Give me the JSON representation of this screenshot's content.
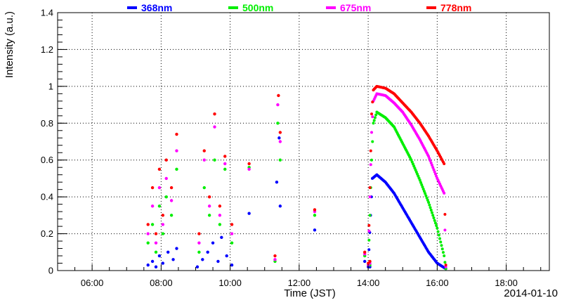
{
  "chart_data": {
    "type": "scatter",
    "title": "",
    "xlabel": "Time (JST)",
    "ylabel": "Intensity (a.u.)",
    "date_label": "2014-01-10",
    "x_unit": "hours",
    "xlim": [
      5.0,
      19.25
    ],
    "ylim": [
      0,
      1.4
    ],
    "x_ticks": [
      6,
      8,
      10,
      12,
      14,
      16,
      18
    ],
    "x_tick_labels": [
      "06:00",
      "08:00",
      "10:00",
      "12:00",
      "14:00",
      "16:00",
      "18:00"
    ],
    "y_ticks": [
      0,
      0.2,
      0.4,
      0.6,
      0.8,
      1,
      1.2,
      1.4
    ],
    "y_tick_labels": [
      "0",
      "0.2",
      "0.4",
      "0.6",
      "0.8",
      "1",
      "1.2",
      "1.4"
    ],
    "grid": true,
    "legend_position": "top",
    "series": [
      {
        "name": "368nm",
        "color": "#0000ff",
        "smooth": [
          [
            14.0,
            0.02
          ],
          [
            14.07,
            0.3
          ],
          [
            14.12,
            0.5
          ],
          [
            14.25,
            0.52
          ],
          [
            14.5,
            0.48
          ],
          [
            14.75,
            0.42
          ],
          [
            15.0,
            0.34
          ],
          [
            15.25,
            0.26
          ],
          [
            15.5,
            0.18
          ],
          [
            15.75,
            0.1
          ],
          [
            16.0,
            0.04
          ],
          [
            16.25,
            0.01
          ]
        ],
        "scatter": [
          [
            7.62,
            0.03
          ],
          [
            7.75,
            0.05
          ],
          [
            7.85,
            0.02
          ],
          [
            7.95,
            0.08
          ],
          [
            8.05,
            0.04
          ],
          [
            8.2,
            0.1
          ],
          [
            8.35,
            0.06
          ],
          [
            8.45,
            0.12
          ],
          [
            9.05,
            0.02
          ],
          [
            9.2,
            0.06
          ],
          [
            9.35,
            0.1
          ],
          [
            9.5,
            0.15
          ],
          [
            9.65,
            0.05
          ],
          [
            9.75,
            0.18
          ],
          [
            9.9,
            0.08
          ],
          [
            10.05,
            0.03
          ],
          [
            10.55,
            0.31
          ],
          [
            11.35,
            0.48
          ],
          [
            11.42,
            0.72
          ],
          [
            11.45,
            0.35
          ],
          [
            12.45,
            0.22
          ],
          [
            13.9,
            0.05
          ],
          [
            14.05,
            0.02
          ]
        ]
      },
      {
        "name": "500nm",
        "color": "#00ee00",
        "smooth": [
          [
            14.0,
            0.03
          ],
          [
            14.05,
            0.3
          ],
          [
            14.1,
            0.6
          ],
          [
            14.15,
            0.8
          ],
          [
            14.25,
            0.86
          ],
          [
            14.5,
            0.83
          ],
          [
            14.75,
            0.78
          ],
          [
            15.0,
            0.69
          ],
          [
            15.25,
            0.6
          ],
          [
            15.5,
            0.49
          ],
          [
            15.75,
            0.37
          ],
          [
            16.0,
            0.23
          ],
          [
            16.2,
            0.08
          ],
          [
            16.25,
            0.01
          ]
        ],
        "scatter": [
          [
            7.62,
            0.15
          ],
          [
            7.75,
            0.25
          ],
          [
            7.85,
            0.1
          ],
          [
            7.95,
            0.35
          ],
          [
            8.05,
            0.2
          ],
          [
            8.15,
            0.4
          ],
          [
            8.3,
            0.3
          ],
          [
            8.45,
            0.55
          ],
          [
            9.1,
            0.1
          ],
          [
            9.25,
            0.45
          ],
          [
            9.4,
            0.3
          ],
          [
            9.55,
            0.6
          ],
          [
            9.7,
            0.25
          ],
          [
            9.85,
            0.55
          ],
          [
            10.05,
            0.15
          ],
          [
            10.55,
            0.56
          ],
          [
            11.3,
            0.05
          ],
          [
            11.38,
            0.8
          ],
          [
            11.45,
            0.6
          ],
          [
            12.45,
            0.3
          ],
          [
            13.9,
            0.08
          ],
          [
            14.05,
            0.03
          ]
        ]
      },
      {
        "name": "675nm",
        "color": "#ff00ff",
        "smooth": [
          [
            14.0,
            0.03
          ],
          [
            14.05,
            0.4
          ],
          [
            14.1,
            0.75
          ],
          [
            14.15,
            0.92
          ],
          [
            14.25,
            0.96
          ],
          [
            14.5,
            0.95
          ],
          [
            14.75,
            0.91
          ],
          [
            15.0,
            0.86
          ],
          [
            15.25,
            0.79
          ],
          [
            15.5,
            0.71
          ],
          [
            15.75,
            0.62
          ],
          [
            16.0,
            0.5
          ],
          [
            16.2,
            0.42
          ],
          [
            16.25,
            0.02
          ]
        ],
        "scatter": [
          [
            7.62,
            0.2
          ],
          [
            7.75,
            0.35
          ],
          [
            7.85,
            0.15
          ],
          [
            7.95,
            0.45
          ],
          [
            8.05,
            0.25
          ],
          [
            8.15,
            0.5
          ],
          [
            8.3,
            0.38
          ],
          [
            8.45,
            0.65
          ],
          [
            9.1,
            0.15
          ],
          [
            9.25,
            0.6
          ],
          [
            9.4,
            0.35
          ],
          [
            9.55,
            0.78
          ],
          [
            9.7,
            0.3
          ],
          [
            9.85,
            0.58
          ],
          [
            10.05,
            0.2
          ],
          [
            10.55,
            0.55
          ],
          [
            11.3,
            0.06
          ],
          [
            11.38,
            0.9
          ],
          [
            11.45,
            0.7
          ],
          [
            12.45,
            0.32
          ],
          [
            13.9,
            0.09
          ],
          [
            14.05,
            0.04
          ]
        ]
      },
      {
        "name": "778nm",
        "color": "#ff0000",
        "smooth": [
          [
            14.0,
            0.04
          ],
          [
            14.05,
            0.45
          ],
          [
            14.1,
            0.85
          ],
          [
            14.15,
            0.98
          ],
          [
            14.25,
            1.0
          ],
          [
            14.5,
            0.99
          ],
          [
            14.75,
            0.96
          ],
          [
            15.0,
            0.91
          ],
          [
            15.25,
            0.86
          ],
          [
            15.5,
            0.8
          ],
          [
            15.75,
            0.73
          ],
          [
            16.0,
            0.65
          ],
          [
            16.2,
            0.58
          ],
          [
            16.25,
            0.03
          ]
        ],
        "scatter": [
          [
            7.62,
            0.25
          ],
          [
            7.75,
            0.45
          ],
          [
            7.85,
            0.2
          ],
          [
            7.95,
            0.55
          ],
          [
            8.05,
            0.3
          ],
          [
            8.15,
            0.6
          ],
          [
            8.3,
            0.45
          ],
          [
            8.45,
            0.74
          ],
          [
            9.1,
            0.2
          ],
          [
            9.25,
            0.65
          ],
          [
            9.4,
            0.4
          ],
          [
            9.55,
            0.85
          ],
          [
            9.7,
            0.35
          ],
          [
            9.85,
            0.62
          ],
          [
            10.05,
            0.25
          ],
          [
            10.55,
            0.58
          ],
          [
            11.3,
            0.08
          ],
          [
            11.4,
            0.95
          ],
          [
            11.45,
            0.75
          ],
          [
            12.45,
            0.33
          ],
          [
            13.9,
            0.1
          ],
          [
            14.05,
            0.05
          ]
        ]
      }
    ]
  }
}
